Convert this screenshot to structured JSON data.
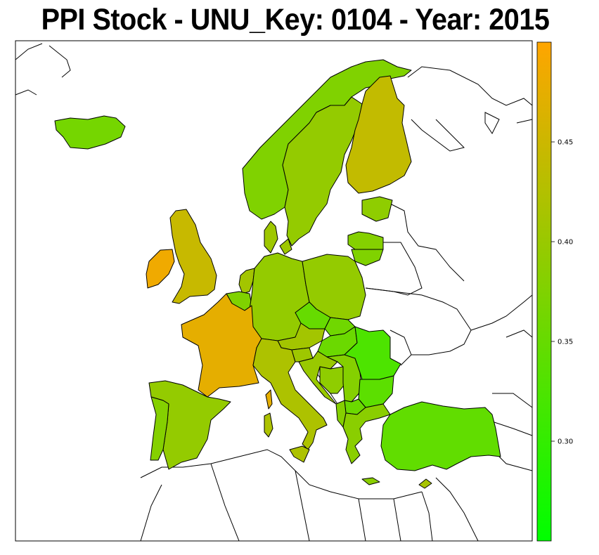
{
  "title": "PPI Stock - UNU_Key: 0104 - Year: 2015",
  "colors": {
    "low": "#00FF00",
    "high": "#FFA500",
    "border": "#000000",
    "background": "#FFFFFF"
  },
  "map_data": {
    "type": "choropleth",
    "region": "Europe",
    "value_range": [
      0.25,
      0.5
    ],
    "legend": {
      "placement": "right",
      "ticks": [
        {
          "value": 0.3,
          "label": "0.30"
        },
        {
          "value": 0.35,
          "label": "0.35"
        },
        {
          "value": 0.4,
          "label": "0.40"
        },
        {
          "value": 0.45,
          "label": "0.45"
        }
      ]
    },
    "regions": [
      {
        "id": "iceland",
        "value": 0.365
      },
      {
        "id": "norway",
        "value": 0.375
      },
      {
        "id": "sweden",
        "value": 0.395
      },
      {
        "id": "finland",
        "value": 0.44
      },
      {
        "id": "estonia",
        "value": 0.39
      },
      {
        "id": "latvia",
        "value": 0.38
      },
      {
        "id": "lithuania",
        "value": 0.375
      },
      {
        "id": "denmark",
        "value": 0.405
      },
      {
        "id": "ireland",
        "value": 0.485
      },
      {
        "id": "uk",
        "value": 0.445
      },
      {
        "id": "netherlands",
        "value": 0.41
      },
      {
        "id": "belgium",
        "value": 0.375
      },
      {
        "id": "germany",
        "value": 0.395
      },
      {
        "id": "poland",
        "value": 0.395
      },
      {
        "id": "czech",
        "value": 0.35
      },
      {
        "id": "slovakia",
        "value": 0.36
      },
      {
        "id": "austria",
        "value": 0.41
      },
      {
        "id": "hungary",
        "value": 0.355
      },
      {
        "id": "france",
        "value": 0.475
      },
      {
        "id": "spain",
        "value": 0.395
      },
      {
        "id": "portugal",
        "value": 0.38
      },
      {
        "id": "italy",
        "value": 0.42
      },
      {
        "id": "sardinia",
        "value": 0.42
      },
      {
        "id": "corsica",
        "value": 0.475
      },
      {
        "id": "sicily",
        "value": 0.42
      },
      {
        "id": "slovenia",
        "value": 0.405
      },
      {
        "id": "croatia",
        "value": 0.4
      },
      {
        "id": "bosnia",
        "value": 0.39
      },
      {
        "id": "serbia",
        "value": 0.38
      },
      {
        "id": "romania",
        "value": 0.325
      },
      {
        "id": "bulgaria",
        "value": 0.34
      },
      {
        "id": "macedonia",
        "value": 0.355
      },
      {
        "id": "albania",
        "value": 0.38
      },
      {
        "id": "greece",
        "value": 0.385
      },
      {
        "id": "turkey",
        "value": 0.345
      },
      {
        "id": "cyprus",
        "value": 0.415
      },
      {
        "id": "crete",
        "value": 0.385
      }
    ]
  }
}
